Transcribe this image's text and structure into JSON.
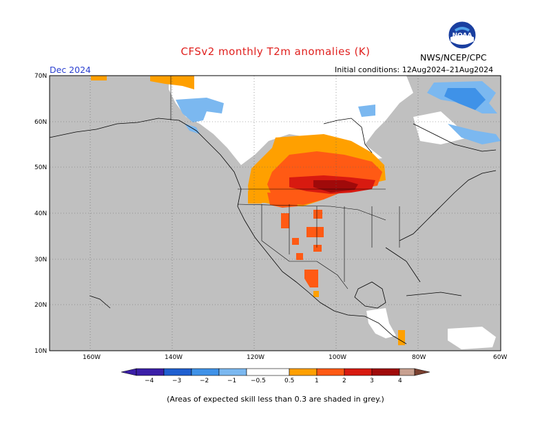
{
  "title": "CFSv2 monthly T2m anomalies (K)",
  "agency": "NWS/NCEP/CPC",
  "valid_month": "Dec 2024",
  "initial_conditions": "Initial conditions: 12Aug2024–21Aug2024",
  "footnote": "(Areas of expected skill less than 0.3 are shaded in grey.)",
  "logo_text": "NOAA",
  "map": {
    "lat_labels": [
      "70N",
      "60N",
      "50N",
      "40N",
      "30N",
      "20N",
      "10N"
    ],
    "lon_labels": [
      "160W",
      "140W",
      "120W",
      "100W",
      "80W",
      "60W"
    ],
    "colors": {
      "land_skill_low": "#c0c0c0",
      "ocean": "#c0c0c0",
      "near_zero": "#ffffff"
    }
  },
  "colorbar": {
    "labels": [
      "−4",
      "−3",
      "−2",
      "−1",
      "−0.5",
      "0.5",
      "1",
      "2",
      "3",
      "4"
    ],
    "colors": [
      "#3b1fa8",
      "#1f5fd0",
      "#3f92e8",
      "#7bb8f0",
      "#ffffff",
      "#ffa000",
      "#ff5a14",
      "#d81a10",
      "#a00a0a",
      "#c8a090",
      "#7a4030"
    ]
  }
}
